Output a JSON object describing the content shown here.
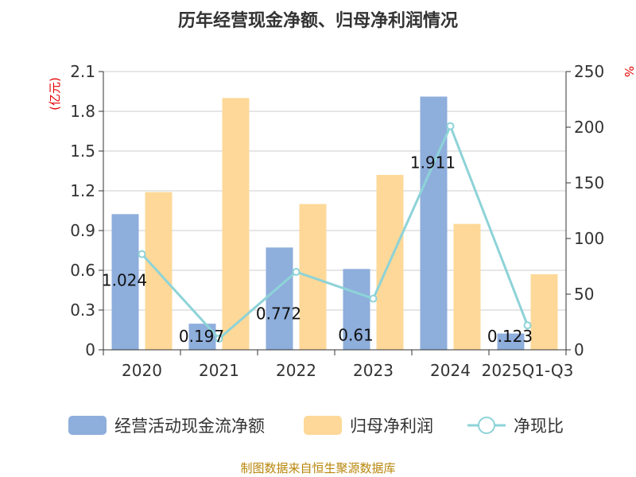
{
  "chart_data": {
    "type": "bar",
    "title": "历年经营现金净额、归母净利润情况",
    "categories": [
      "2020",
      "2021",
      "2022",
      "2023",
      "2024",
      "2025Q1-Q3"
    ],
    "series": [
      {
        "name": "经营活动现金流净额",
        "type": "bar",
        "axis": "left",
        "color": "#8eaedc",
        "values": [
          1.024,
          0.197,
          0.772,
          0.61,
          1.911,
          0.123
        ],
        "labels": [
          "1.024",
          "0.197",
          "0.772",
          "0.61",
          "1.911",
          "0.123"
        ]
      },
      {
        "name": "归母净利润",
        "type": "bar",
        "axis": "left",
        "color": "#fdd898",
        "values": [
          1.19,
          1.9,
          1.1,
          1.32,
          0.95,
          0.57
        ]
      },
      {
        "name": "净现比",
        "type": "line",
        "axis": "right",
        "color": "#8dd3d8",
        "values": [
          86,
          10,
          70,
          46,
          201,
          22
        ]
      }
    ],
    "y_left": {
      "unit": "(亿元)",
      "min": 0,
      "max": 2.1,
      "ticks": [
        "0",
        "0.3",
        "0.6",
        "0.9",
        "1.2",
        "1.5",
        "1.8",
        "2.1"
      ]
    },
    "y_right": {
      "unit": "%",
      "min": 0,
      "max": 250,
      "ticks": [
        "0",
        "50",
        "100",
        "150",
        "200",
        "250"
      ]
    },
    "grid": true,
    "legend_position": "bottom"
  },
  "source": "制图数据来自恒生聚源数据库"
}
